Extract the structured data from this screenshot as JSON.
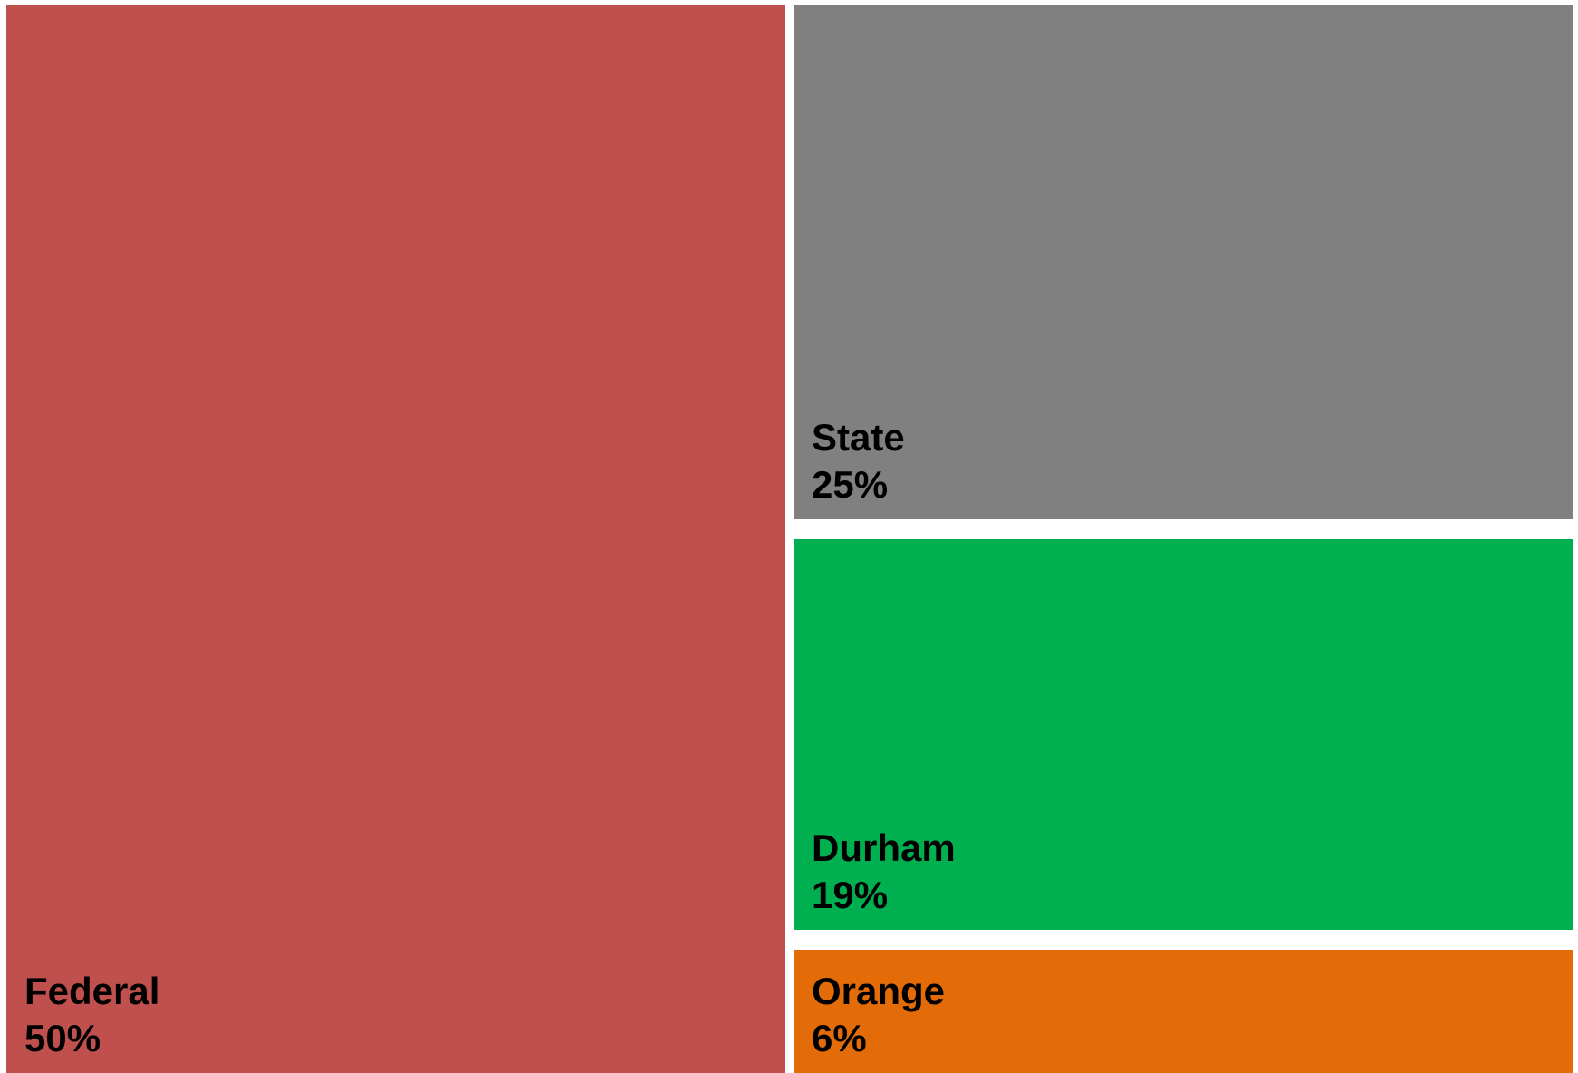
{
  "chart_data": {
    "type": "treemap",
    "title": "",
    "items": [
      {
        "name": "Federal",
        "value": 50,
        "label": "50%",
        "color": "#c0504d"
      },
      {
        "name": "State",
        "value": 25,
        "label": "25%",
        "color": "#808080"
      },
      {
        "name": "Durham",
        "value": 19,
        "label": "19%",
        "color": "#00b050"
      },
      {
        "name": "Orange",
        "value": 6,
        "label": "6%",
        "color": "#e36c09"
      }
    ]
  }
}
